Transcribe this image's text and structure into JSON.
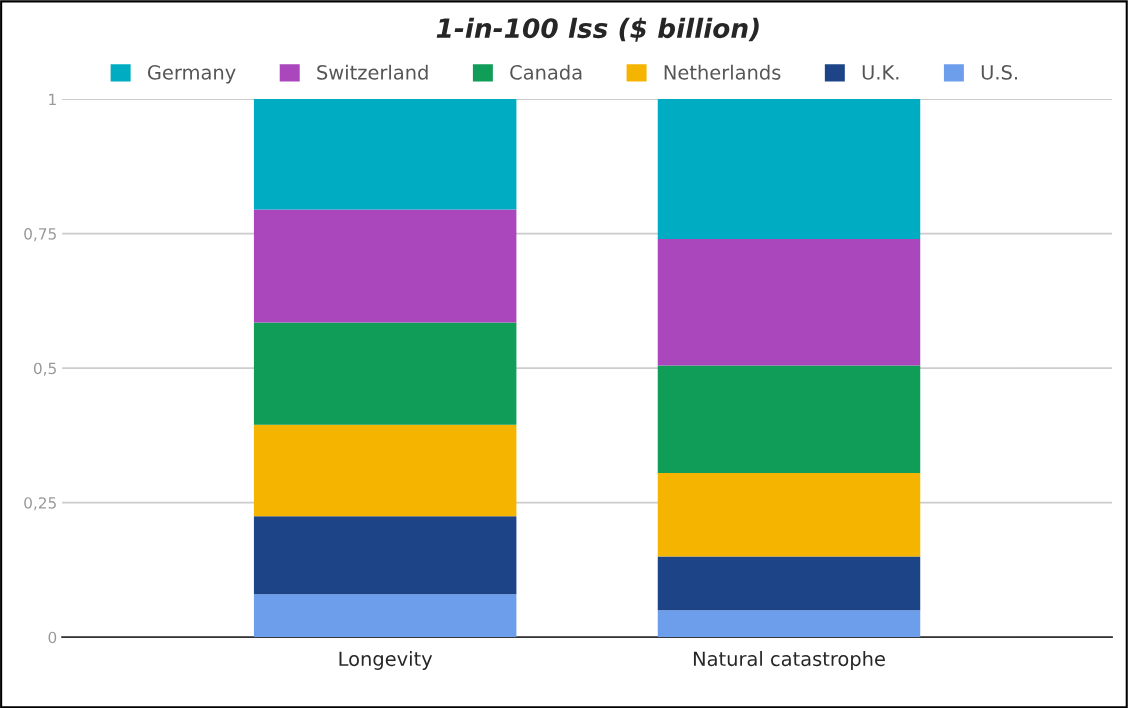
{
  "chart_data": {
    "type": "bar",
    "title": "1-in-100 lss ($ billion)",
    "categories": [
      "Longevity",
      "Natural catastrophe"
    ],
    "stacked": true,
    "series": [
      {
        "name": "U.S.",
        "color": "#6d9eeb",
        "values": [
          0.08,
          0.05
        ]
      },
      {
        "name": "U.K.",
        "color": "#1e4488",
        "values": [
          0.145,
          0.1
        ]
      },
      {
        "name": "Netherlands",
        "color": "#f4b400",
        "values": [
          0.17,
          0.155
        ]
      },
      {
        "name": "Canada",
        "color": "#0f9d58",
        "values": [
          0.19,
          0.2
        ]
      },
      {
        "name": "Switzerland",
        "color": "#ab47bc",
        "values": [
          0.21,
          0.235
        ]
      },
      {
        "name": "Germany",
        "color": "#00acc1",
        "values": [
          0.205,
          0.26
        ]
      }
    ],
    "ylim": [
      0,
      1
    ],
    "yticks": [
      0,
      {
        "value": 0.25,
        "label": "0,25"
      },
      {
        "value": 0.5,
        "label": "0,5"
      },
      {
        "value": 0.75,
        "label": "0,75"
      },
      1
    ],
    "grid": "y",
    "legend": "top"
  }
}
